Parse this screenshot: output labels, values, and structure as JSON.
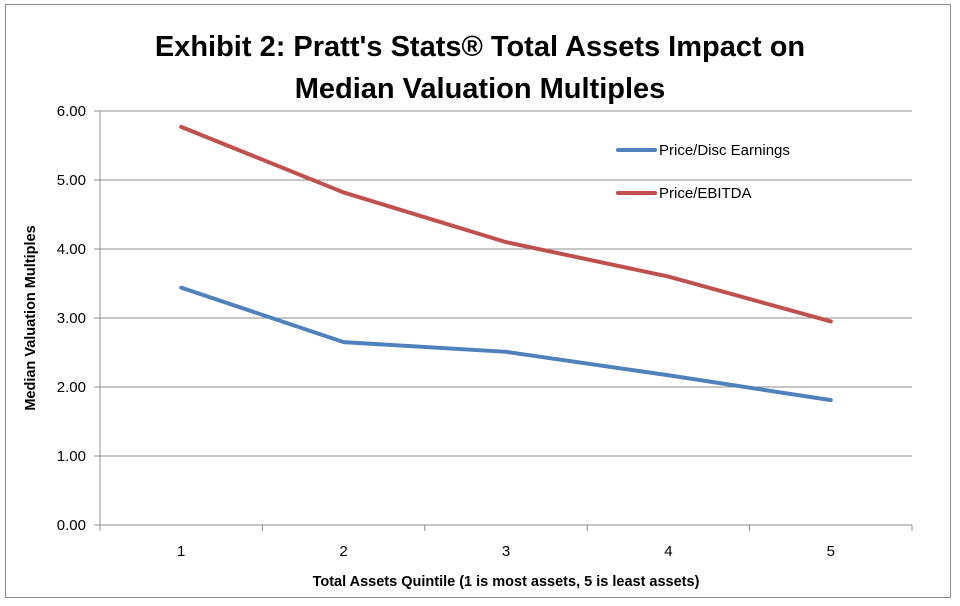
{
  "chart_data": {
    "type": "line",
    "title_lines": [
      "Exhibit 2: Pratt's Stats® Total Assets Impact on",
      "Median Valuation Multiples"
    ],
    "xlabel": "Total Assets Quintile (1 is most assets, 5 is least assets)",
    "ylabel": "Median Valuation Multiples",
    "categories": [
      "1",
      "2",
      "3",
      "4",
      "5"
    ],
    "ylim": [
      0,
      6
    ],
    "yticks": [
      "0.00",
      "1.00",
      "2.00",
      "3.00",
      "4.00",
      "5.00",
      "6.00"
    ],
    "grid": true,
    "legend_position": "top-right",
    "series": [
      {
        "name": "Price/Disc Earnings",
        "color": "#4f81bd",
        "values": [
          3.44,
          2.65,
          2.51,
          2.17,
          1.81
        ]
      },
      {
        "name": "Price/EBITDA",
        "color": "#c0504d",
        "values": [
          5.77,
          4.82,
          4.1,
          3.6,
          2.95
        ]
      }
    ]
  }
}
